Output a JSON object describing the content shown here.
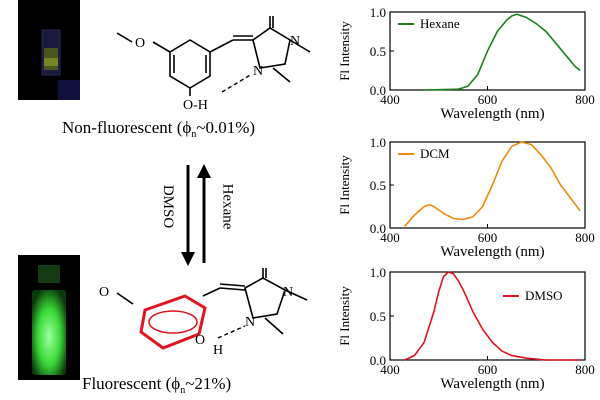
{
  "top_molecule": {
    "caption_prefix": "Non-fluorescent (",
    "phi": "ϕ",
    "phi_sub": "n",
    "caption_value": "~0.01%)",
    "atom_O1": "O",
    "atom_N1": "N",
    "atom_N2": "N",
    "atom_OH": "O-H"
  },
  "bottom_molecule": {
    "caption_prefix": "Fluorescent (",
    "phi": "ϕ",
    "phi_sub": "n",
    "caption_value": "~21%)",
    "atom_O1": "O",
    "atom_N1": "N",
    "atom_N2": "N",
    "atom_OH": "O",
    "atom_H": "H"
  },
  "arrows": {
    "down_label": "DMSO",
    "up_label": "Hexane"
  },
  "colors": {
    "hexane": "#1a7f1a",
    "dcm": "#f08a0f",
    "dmso": "#e0141e",
    "highlight": "#e0141e"
  },
  "chart_data": [
    {
      "type": "line",
      "ylabel": "Fl Intensity",
      "xlabel": "Wavelength (nm)",
      "xlim": [
        400,
        800
      ],
      "ylim": [
        0,
        1.0
      ],
      "xticks": [
        400,
        600,
        800
      ],
      "yticks": [
        0.0,
        0.5,
        1.0
      ],
      "xtick_labels": [
        "400",
        "600",
        "800"
      ],
      "ytick_labels": [
        "0.0",
        "0.5",
        "1.0"
      ],
      "legend_position": "top-left",
      "series": [
        {
          "name": "Hexane",
          "color": "#1a7f1a",
          "x": [
            470,
            540,
            560,
            580,
            600,
            620,
            640,
            650,
            660,
            680,
            700,
            720,
            740,
            760,
            780,
            790
          ],
          "y": [
            0.0,
            0.01,
            0.05,
            0.2,
            0.5,
            0.75,
            0.9,
            0.95,
            0.97,
            0.93,
            0.85,
            0.75,
            0.6,
            0.45,
            0.3,
            0.25
          ]
        }
      ]
    },
    {
      "type": "line",
      "ylabel": "Fl Intensity",
      "xlabel": "Wavelength (nm)",
      "xlim": [
        400,
        800
      ],
      "ylim": [
        0,
        1.0
      ],
      "xticks": [
        400,
        600,
        800
      ],
      "yticks": [
        0.0,
        0.5,
        1.0
      ],
      "xtick_labels": [
        "400",
        "600",
        "800"
      ],
      "ytick_labels": [
        "0.0",
        "0.5",
        "1.0"
      ],
      "legend_position": "top-left",
      "series": [
        {
          "name": "DCM",
          "color": "#f08a0f",
          "x": [
            430,
            450,
            470,
            480,
            490,
            510,
            530,
            550,
            570,
            590,
            610,
            630,
            650,
            670,
            690,
            710,
            730,
            750,
            770,
            790
          ],
          "y": [
            0.02,
            0.15,
            0.25,
            0.27,
            0.25,
            0.17,
            0.11,
            0.1,
            0.13,
            0.25,
            0.5,
            0.78,
            0.95,
            1.0,
            0.97,
            0.85,
            0.7,
            0.5,
            0.35,
            0.2
          ]
        }
      ]
    },
    {
      "type": "line",
      "ylabel": "Fl Intensity",
      "xlabel": "Wavelength (nm)",
      "xlim": [
        400,
        800
      ],
      "ylim": [
        0,
        1.0
      ],
      "xticks": [
        400,
        600,
        800
      ],
      "yticks": [
        0.0,
        0.5,
        1.0
      ],
      "xtick_labels": [
        "400",
        "600",
        "800"
      ],
      "ytick_labels": [
        "0.0",
        "0.5",
        "1.0"
      ],
      "legend_position": "top-right",
      "series": [
        {
          "name": "DMSO",
          "color": "#e0141e",
          "x": [
            430,
            450,
            470,
            490,
            500,
            510,
            520,
            530,
            540,
            550,
            570,
            590,
            610,
            630,
            650,
            680,
            720,
            760,
            790
          ],
          "y": [
            0.0,
            0.05,
            0.2,
            0.55,
            0.78,
            0.95,
            1.0,
            0.98,
            0.9,
            0.8,
            0.55,
            0.35,
            0.2,
            0.1,
            0.05,
            0.02,
            0.0,
            0.0,
            0.0
          ]
        }
      ]
    }
  ]
}
